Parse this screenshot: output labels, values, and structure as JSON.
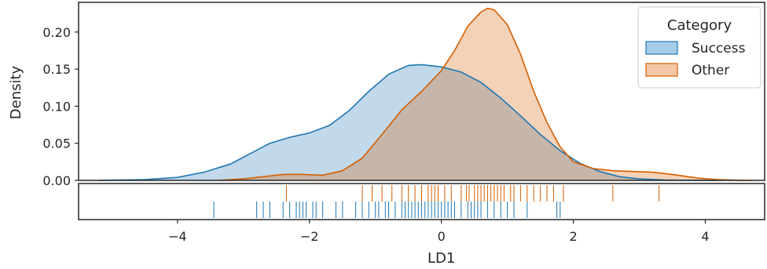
{
  "chart_data": {
    "type": "area",
    "xlabel": "LD1",
    "ylabel": "Density",
    "xlim": [
      -5.5,
      4.9
    ],
    "ylim": [
      0,
      0.24
    ],
    "xticks": [
      -4,
      -2,
      0,
      2,
      4
    ],
    "xtick_labels": [
      "−4",
      "−2",
      "0",
      "2",
      "4"
    ],
    "yticks": [
      0,
      0.05,
      0.1,
      0.15,
      0.2
    ],
    "ytick_labels": [
      "0.00",
      "0.05",
      "0.10",
      "0.15",
      "0.20"
    ],
    "grid": false,
    "legend": {
      "title": "Category",
      "placement": "top-right"
    },
    "series": [
      {
        "name": "Success",
        "color": "#1f77b4",
        "fill": "#a6cde8",
        "x": [
          -5.2,
          -4.5,
          -4.0,
          -3.6,
          -3.2,
          -2.9,
          -2.6,
          -2.3,
          -2.0,
          -1.7,
          -1.4,
          -1.1,
          -0.8,
          -0.5,
          -0.3,
          0.0,
          0.3,
          0.6,
          0.9,
          1.2,
          1.5,
          1.8,
          2.1,
          2.4,
          2.7,
          3.0,
          3.4,
          3.8,
          4.2
        ],
        "y": [
          0.0,
          0.001,
          0.004,
          0.011,
          0.022,
          0.036,
          0.05,
          0.058,
          0.064,
          0.074,
          0.094,
          0.12,
          0.143,
          0.155,
          0.156,
          0.153,
          0.146,
          0.132,
          0.111,
          0.087,
          0.062,
          0.04,
          0.023,
          0.012,
          0.005,
          0.002,
          0.0005,
          0.0001,
          0.0
        ]
      },
      {
        "name": "Other",
        "color": "#d55e00",
        "fill": "#f5c6a8",
        "x": [
          -3.4,
          -3.0,
          -2.7,
          -2.4,
          -2.1,
          -1.8,
          -1.5,
          -1.2,
          -0.9,
          -0.6,
          -0.3,
          0.0,
          0.2,
          0.4,
          0.6,
          0.7,
          0.8,
          1.0,
          1.2,
          1.4,
          1.6,
          1.8,
          2.0,
          2.3,
          2.6,
          2.9,
          3.2,
          3.5,
          3.9,
          4.2,
          4.5,
          4.7
        ],
        "y": [
          0.0,
          0.002,
          0.005,
          0.008,
          0.008,
          0.007,
          0.013,
          0.03,
          0.062,
          0.095,
          0.12,
          0.148,
          0.175,
          0.208,
          0.227,
          0.232,
          0.23,
          0.21,
          0.17,
          0.12,
          0.078,
          0.045,
          0.025,
          0.016,
          0.013,
          0.012,
          0.011,
          0.008,
          0.003,
          0.001,
          0.0002,
          0.0
        ]
      }
    ],
    "rug": [
      {
        "series": "Other",
        "color": "#d55e00",
        "values": [
          -2.35,
          -1.2,
          -1.05,
          -0.9,
          -0.75,
          -0.6,
          -0.5,
          -0.4,
          -0.3,
          -0.2,
          -0.15,
          -0.1,
          -0.05,
          0.05,
          0.15,
          0.3,
          0.38,
          0.42,
          0.5,
          0.55,
          0.6,
          0.65,
          0.7,
          0.75,
          0.8,
          0.85,
          0.9,
          0.95,
          1.05,
          1.1,
          1.2,
          1.3,
          1.4,
          1.5,
          1.6,
          1.7,
          1.85,
          2.6,
          3.3
        ]
      },
      {
        "series": "Success",
        "color": "#1f77b4",
        "values": [
          -3.45,
          -2.8,
          -2.7,
          -2.6,
          -2.4,
          -2.3,
          -2.2,
          -2.15,
          -2.1,
          -2.05,
          -1.95,
          -1.9,
          -1.8,
          -1.6,
          -1.5,
          -1.3,
          -1.2,
          -1.1,
          -1.0,
          -0.95,
          -0.85,
          -0.8,
          -0.7,
          -0.6,
          -0.55,
          -0.5,
          -0.45,
          -0.4,
          -0.35,
          -0.3,
          -0.25,
          -0.2,
          -0.15,
          -0.1,
          -0.05,
          0.0,
          0.05,
          0.1,
          0.15,
          0.2,
          0.3,
          0.4,
          0.45,
          0.5,
          0.55,
          0.6,
          0.7,
          0.8,
          0.9,
          1.0,
          1.1,
          1.3,
          1.75,
          1.8
        ]
      }
    ]
  }
}
